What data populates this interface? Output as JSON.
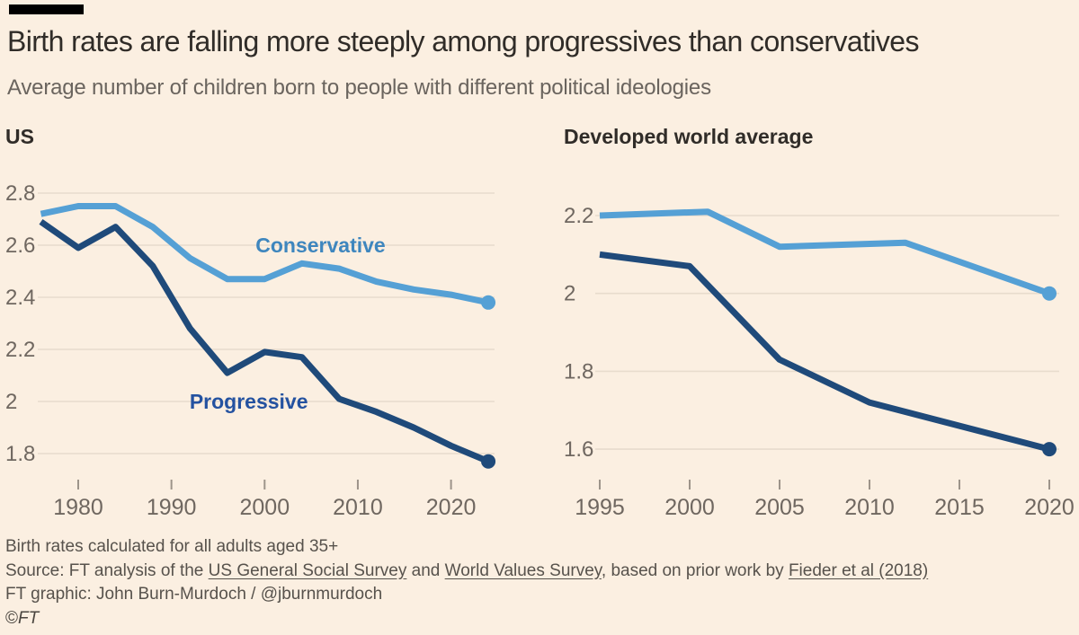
{
  "header": {
    "title": "Birth rates are falling more steeply among progressives than conservatives",
    "subtitle": "Average number of children born to people with different political ideologies"
  },
  "colors": {
    "background": "#FBEFE1",
    "brand_bar": "#000000",
    "gridline": "#E8DCCD",
    "tick": "#9D948A",
    "axis_label": "#6F6760",
    "conservative_line": "#55A0D5",
    "conservative_label": "#3E86BE",
    "progressive_line": "#1F4A7A",
    "progressive_label": "#2452A0"
  },
  "chart_data": [
    {
      "type": "line",
      "panel_title": "US",
      "xlabel": "",
      "ylabel": "",
      "xlim": [
        1976,
        2024
      ],
      "ylim": [
        1.8,
        2.8
      ],
      "grid": true,
      "legend_position": "inline-labels",
      "x_ticks": [
        1980,
        1990,
        2000,
        2010,
        2020
      ],
      "y_ticks": [
        {
          "v": 2.8,
          "label": "2.8"
        },
        {
          "v": 2.6,
          "label": "2.6"
        },
        {
          "v": 2.4,
          "label": "2.4"
        },
        {
          "v": 2.2,
          "label": "2.2"
        },
        {
          "v": 2.0,
          "label": "2"
        },
        {
          "v": 1.8,
          "label": "1.8"
        }
      ],
      "series": [
        {
          "name": "Conservative",
          "color_key": "conservative_line",
          "label_color_key": "conservative_label",
          "label": {
            "text": "Conservative",
            "x": 2006,
            "y": 2.6
          },
          "end_dot": true,
          "points": [
            [
              1976,
              2.72
            ],
            [
              1980,
              2.75
            ],
            [
              1984,
              2.75
            ],
            [
              1988,
              2.67
            ],
            [
              1992,
              2.55
            ],
            [
              1996,
              2.47
            ],
            [
              2000,
              2.47
            ],
            [
              2004,
              2.53
            ],
            [
              2008,
              2.51
            ],
            [
              2012,
              2.46
            ],
            [
              2016,
              2.43
            ],
            [
              2020,
              2.41
            ],
            [
              2024,
              2.38
            ]
          ]
        },
        {
          "name": "Progressive",
          "color_key": "progressive_line",
          "label_color_key": "progressive_label",
          "label": {
            "text": "Progressive",
            "x": 1998.3,
            "y": 2.0
          },
          "end_dot": true,
          "points": [
            [
              1976,
              2.69
            ],
            [
              1980,
              2.59
            ],
            [
              1984,
              2.67
            ],
            [
              1988,
              2.52
            ],
            [
              1992,
              2.28
            ],
            [
              1996,
              2.11
            ],
            [
              2000,
              2.19
            ],
            [
              2004,
              2.17
            ],
            [
              2008,
              2.01
            ],
            [
              2012,
              1.96
            ],
            [
              2016,
              1.9
            ],
            [
              2020,
              1.83
            ],
            [
              2024,
              1.77
            ]
          ]
        }
      ]
    },
    {
      "type": "line",
      "panel_title": "Developed world average",
      "xlabel": "",
      "ylabel": "",
      "xlim": [
        1995,
        2020
      ],
      "ylim": [
        1.6,
        2.2
      ],
      "grid": true,
      "legend_position": "none",
      "x_ticks": [
        1995,
        2000,
        2005,
        2010,
        2015,
        2020
      ],
      "y_ticks": [
        {
          "v": 2.2,
          "label": "2.2"
        },
        {
          "v": 2.0,
          "label": "2"
        },
        {
          "v": 1.8,
          "label": "1.8"
        },
        {
          "v": 1.6,
          "label": "1.6"
        }
      ],
      "series": [
        {
          "name": "Conservative",
          "color_key": "conservative_line",
          "end_dot": true,
          "points": [
            [
              1995,
              2.2
            ],
            [
              2001,
              2.21
            ],
            [
              2005,
              2.12
            ],
            [
              2012,
              2.13
            ],
            [
              2020,
              2.0
            ]
          ]
        },
        {
          "name": "Progressive",
          "color_key": "progressive_line",
          "end_dot": true,
          "points": [
            [
              1995,
              2.1
            ],
            [
              2000,
              2.07
            ],
            [
              2005,
              1.83
            ],
            [
              2010,
              1.72
            ],
            [
              2020,
              1.6
            ]
          ]
        }
      ]
    }
  ],
  "footer": {
    "note": "Birth rates calculated for all adults aged 35+",
    "source_segments": [
      {
        "text": "Source: FT analysis of the ",
        "link": false
      },
      {
        "text": "US General Social Survey",
        "link": true
      },
      {
        "text": " and ",
        "link": false
      },
      {
        "text": "World Values Survey",
        "link": true
      },
      {
        "text": ", based on prior work by ",
        "link": false
      },
      {
        "text": "Fieder et al (2018)",
        "link": true
      }
    ],
    "credit": "FT graphic: John Burn-Murdoch / @jburnmurdoch",
    "copyright_symbol": "©",
    "copyright_brand": "FT"
  }
}
